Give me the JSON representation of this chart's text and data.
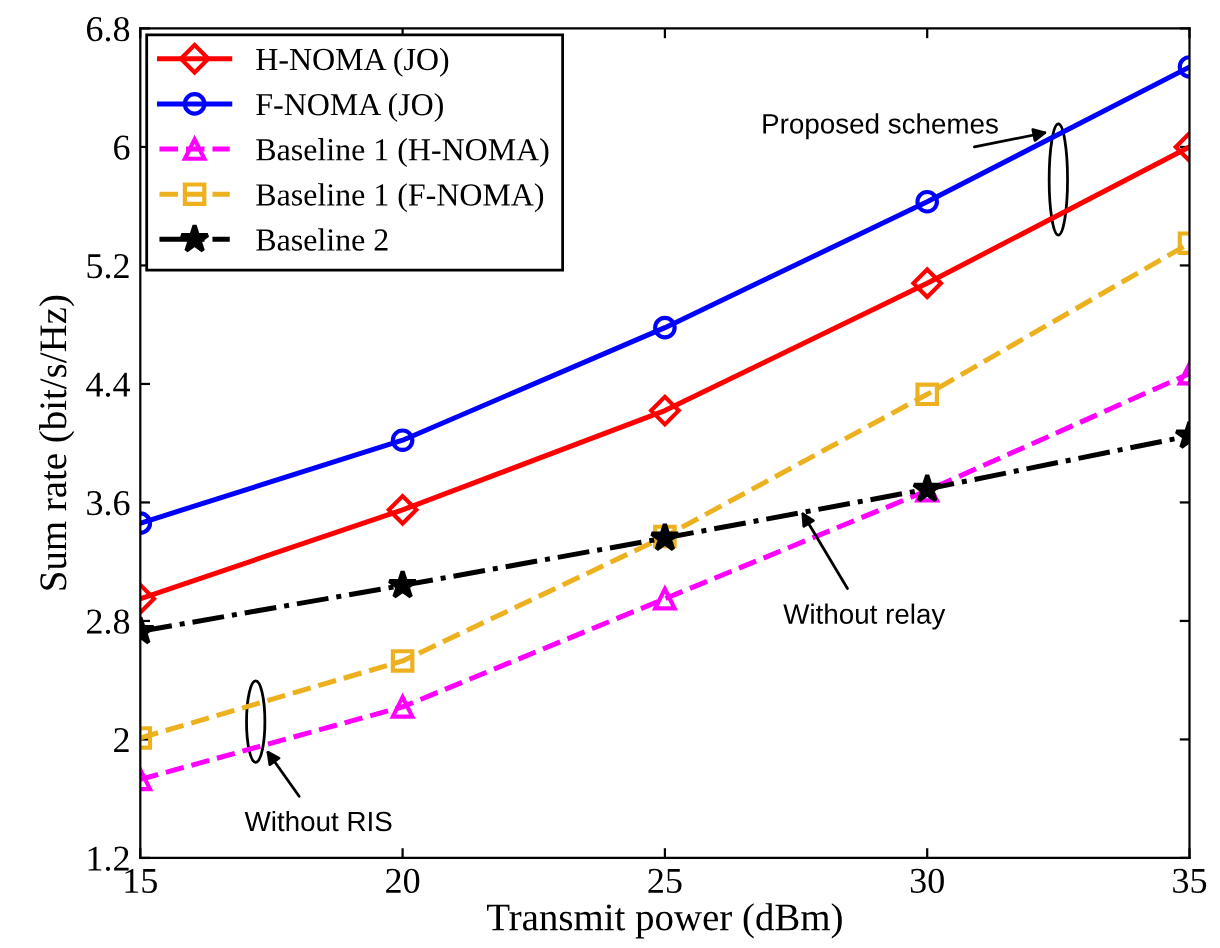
{
  "chart_data": {
    "type": "line",
    "xlabel": "Transmit power (dBm)",
    "ylabel": "Sum rate (bit/s/Hz)",
    "x": [
      15,
      20,
      25,
      30,
      35
    ],
    "xlim": [
      15,
      35
    ],
    "xticks": [
      15,
      20,
      25,
      30,
      35
    ],
    "ylim": [
      1.2,
      6.8
    ],
    "yticks": [
      1.2,
      2,
      2.8,
      3.6,
      4.4,
      5.2,
      6,
      6.8
    ],
    "grid": false,
    "legend": "top left",
    "series": [
      {
        "name": "H-NOMA (JO)",
        "color": "#ff0000",
        "marker": "diamond",
        "line_style": "solid",
        "values": [
          2.95,
          3.55,
          4.22,
          5.08,
          6.0
        ]
      },
      {
        "name": "F-NOMA (JO)",
        "color": "#0000ff",
        "marker": "circle",
        "line_style": "solid",
        "values": [
          3.46,
          4.02,
          4.78,
          5.63,
          6.54
        ]
      },
      {
        "name": "Baseline 1 (H-NOMA)",
        "color": "#ff00ff",
        "marker": "triangle",
        "line_style": "dashed",
        "values": [
          1.73,
          2.22,
          2.95,
          3.68,
          4.47
        ]
      },
      {
        "name": "Baseline 1 (F-NOMA)",
        "color": "#edb120",
        "marker": "square",
        "line_style": "dashed",
        "values": [
          2.01,
          2.53,
          3.37,
          4.33,
          5.35
        ]
      },
      {
        "name": "Baseline 2",
        "color": "#000000",
        "marker": "star",
        "line_style": "dashdot",
        "values": [
          2.73,
          3.04,
          3.36,
          3.69,
          4.05
        ]
      }
    ],
    "annotations": [
      "Proposed schemes",
      {
        "text": "Without relay",
        "x": 27.6,
        "y": 3.54
      },
      {
        "text": "Without RIS",
        "x": 17.4,
        "y": 1.93
      }
    ]
  }
}
